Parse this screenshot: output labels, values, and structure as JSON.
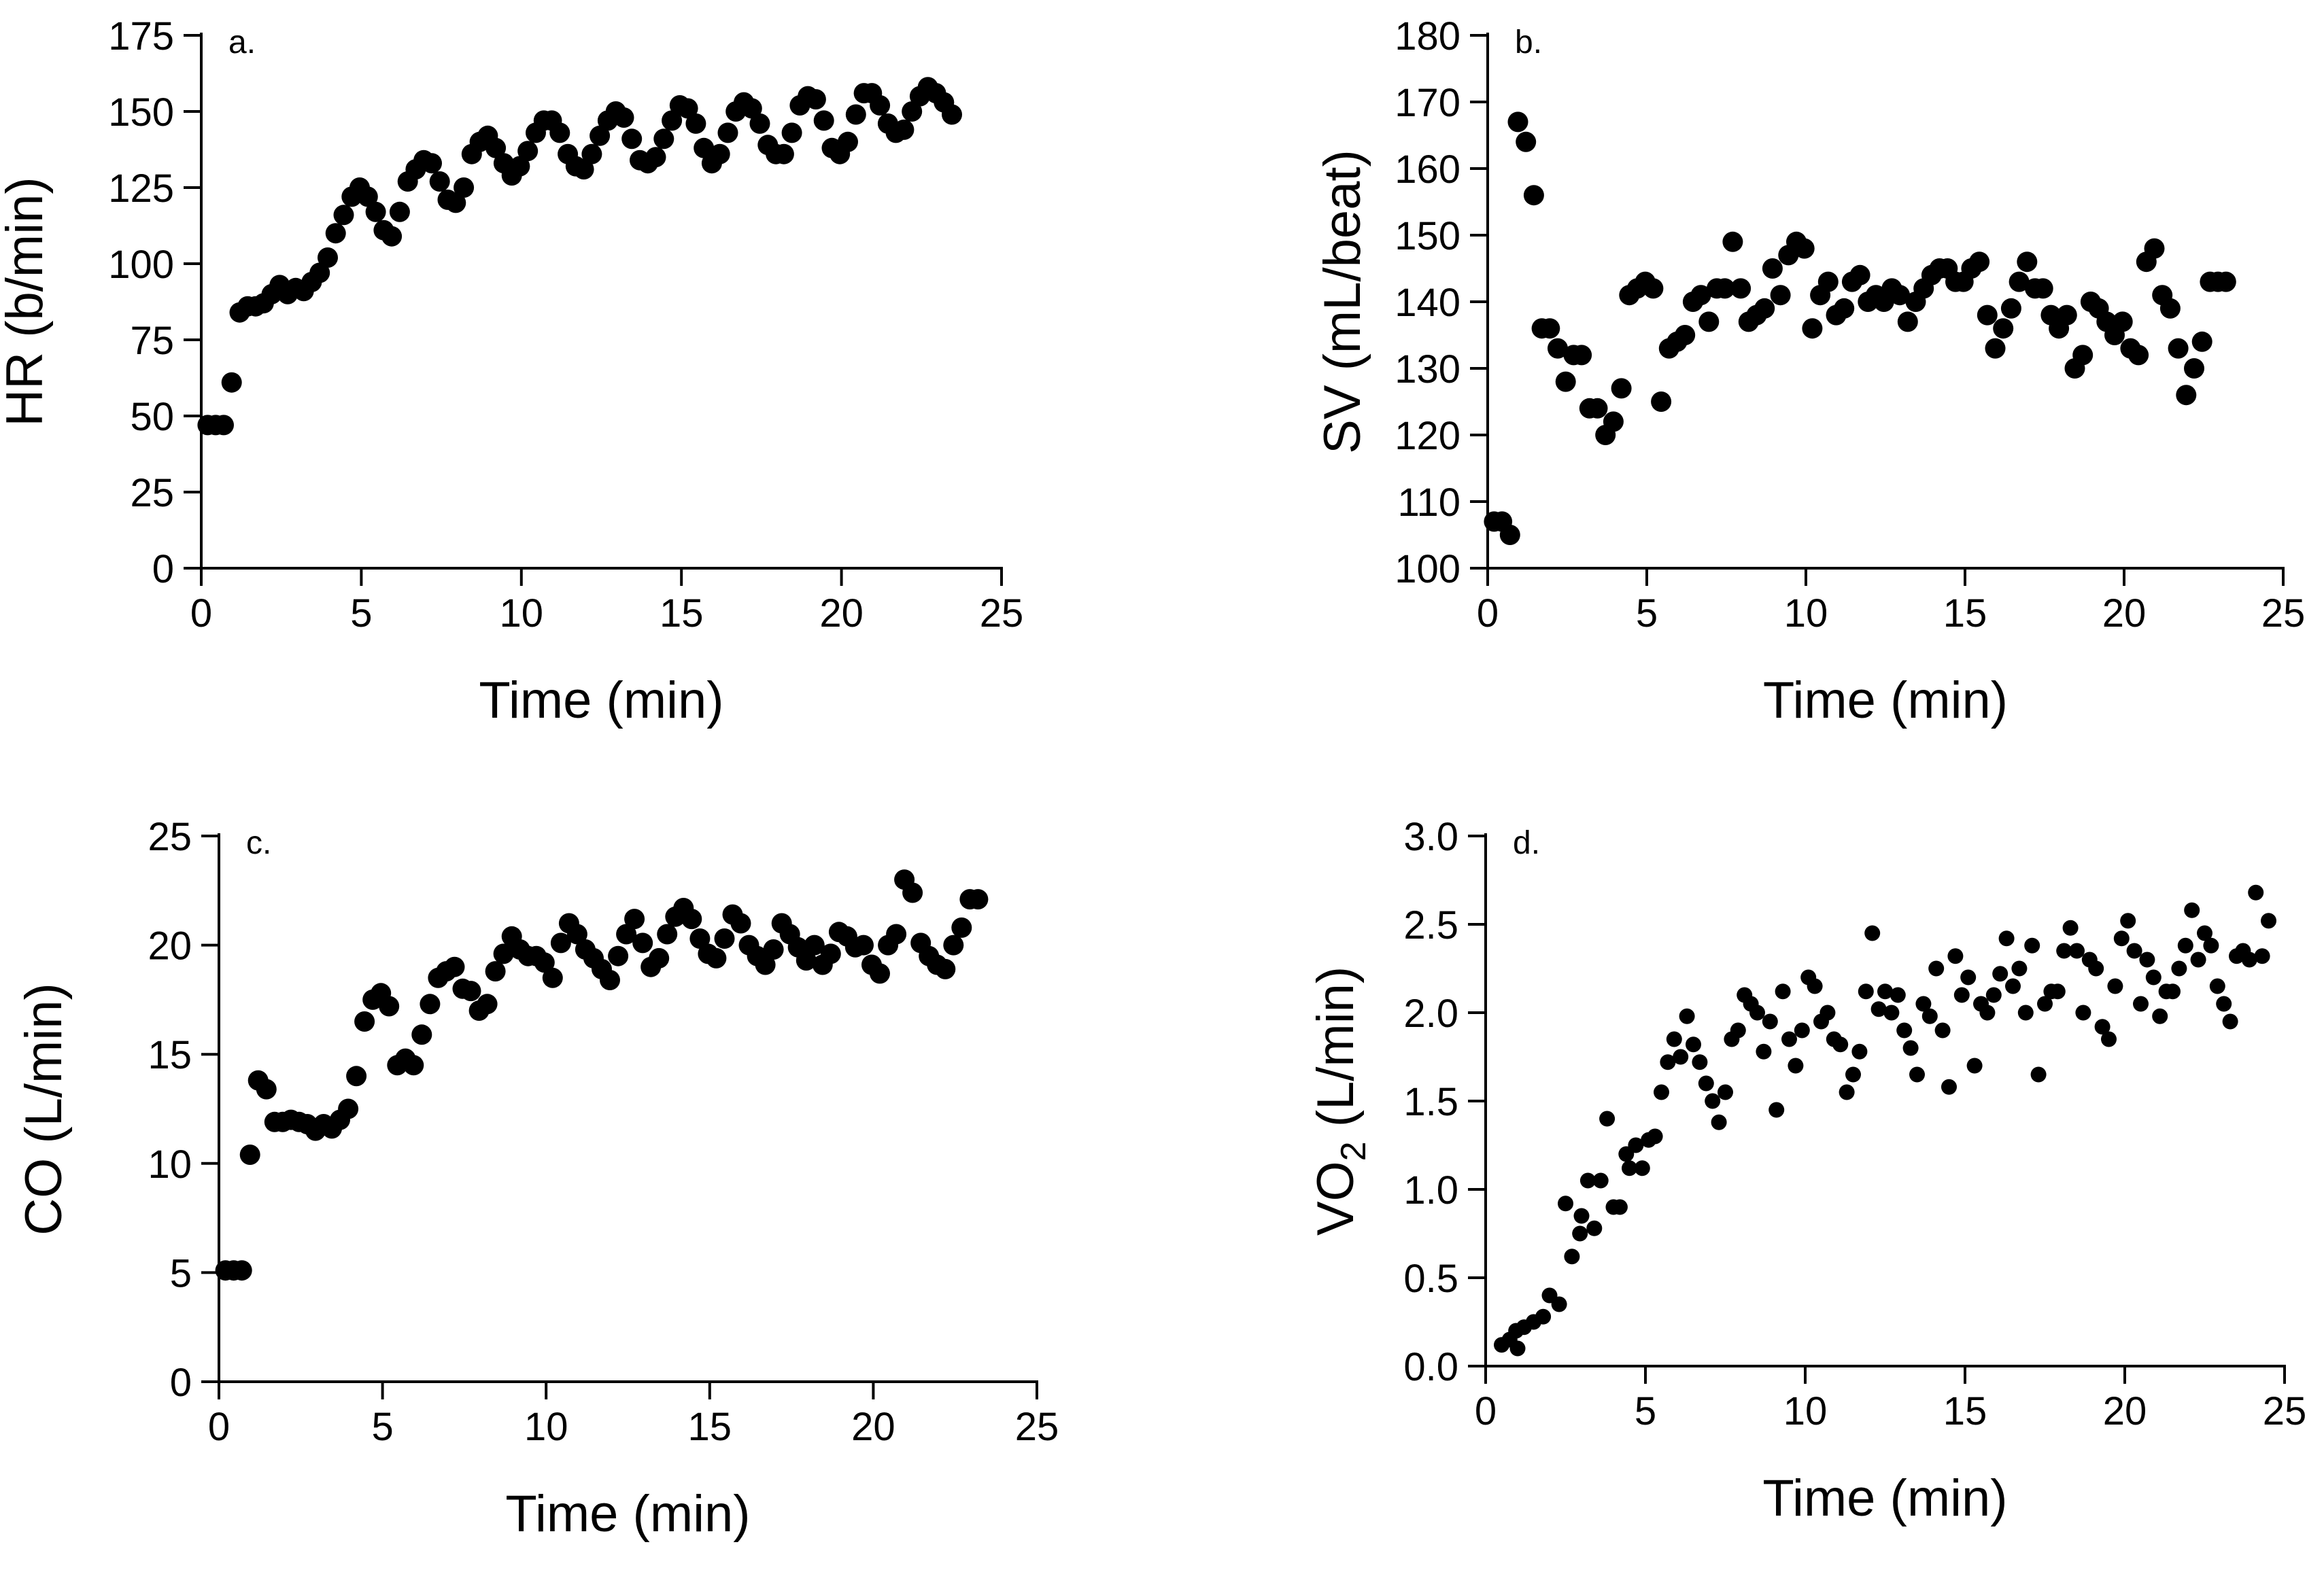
{
  "chart_data": [
    {
      "panel": "a.",
      "type": "scatter",
      "xlabel": "Time (min)",
      "ylabel": "HR (b/min)",
      "xlim": [
        0,
        25
      ],
      "ylim": [
        0,
        175
      ],
      "xticks": [
        "0",
        "5",
        "10",
        "15",
        "20",
        "25"
      ],
      "yticks": [
        "0",
        "25",
        "50",
        "75",
        "100",
        "125",
        "150",
        "175"
      ],
      "x": [
        0.2,
        0.45,
        0.7,
        0.95,
        1.2,
        1.45,
        1.7,
        1.95,
        2.2,
        2.45,
        2.7,
        2.95,
        3.2,
        3.45,
        3.7,
        3.95,
        4.2,
        4.45,
        4.7,
        4.95,
        5.2,
        5.45,
        5.7,
        5.95,
        6.2,
        6.45,
        6.7,
        6.95,
        7.2,
        7.45,
        7.7,
        7.95,
        8.2,
        8.45,
        8.7,
        8.95,
        9.2,
        9.45,
        9.7,
        9.95,
        10.2,
        10.45,
        10.7,
        10.95,
        11.2,
        11.45,
        11.7,
        11.95,
        12.2,
        12.45,
        12.7,
        12.95,
        13.2,
        13.45,
        13.7,
        13.95,
        14.2,
        14.45,
        14.7,
        14.95,
        15.2,
        15.45,
        15.7,
        15.95,
        16.2,
        16.45,
        16.7,
        16.95,
        17.2,
        17.45,
        17.7,
        17.95,
        18.2,
        18.45,
        18.7,
        18.95,
        19.2,
        19.45,
        19.7,
        19.95,
        20.2,
        20.45,
        20.7,
        20.95,
        21.2,
        21.45,
        21.7,
        21.95,
        22.2,
        22.45,
        22.7,
        22.95,
        23.2,
        23.45
      ],
      "y": [
        47,
        47,
        47,
        61,
        84,
        86,
        86,
        87,
        90,
        93,
        90,
        92,
        91,
        94,
        97,
        102,
        110,
        116,
        122,
        125,
        122,
        117,
        111,
        109,
        117,
        127,
        131,
        134,
        133,
        127,
        121,
        120,
        125,
        136,
        140,
        142,
        138,
        133,
        129,
        132,
        137,
        143,
        147,
        147,
        143,
        136,
        132,
        131,
        136,
        142,
        147,
        150,
        148,
        141,
        134,
        133,
        135,
        141,
        147,
        152,
        151,
        146,
        138,
        133,
        136,
        143,
        150,
        153,
        151,
        146,
        139,
        136,
        136,
        143,
        152,
        155,
        154,
        147,
        138,
        136,
        140,
        149,
        156,
        156,
        152,
        146,
        143,
        144,
        150,
        155,
        158,
        156,
        153,
        149
      ]
    },
    {
      "panel": "b.",
      "type": "scatter",
      "xlabel": "Time (min)",
      "ylabel": "SV (mL/beat)",
      "xlim": [
        0,
        25
      ],
      "ylim": [
        100,
        180
      ],
      "xticks": [
        "0",
        "5",
        "10",
        "15",
        "20",
        "25"
      ],
      "yticks": [
        "100",
        "110",
        "120",
        "130",
        "140",
        "150",
        "160",
        "170",
        "180"
      ],
      "x": [
        0.2,
        0.45,
        0.7,
        0.95,
        1.2,
        1.45,
        1.7,
        1.95,
        2.2,
        2.45,
        2.7,
        2.95,
        3.2,
        3.45,
        3.7,
        3.95,
        4.2,
        4.45,
        4.7,
        4.95,
        5.2,
        5.45,
        5.7,
        5.95,
        6.2,
        6.45,
        6.7,
        6.95,
        7.2,
        7.45,
        7.7,
        7.95,
        8.2,
        8.45,
        8.7,
        8.95,
        9.2,
        9.45,
        9.7,
        9.95,
        10.2,
        10.45,
        10.7,
        10.95,
        11.2,
        11.45,
        11.7,
        11.95,
        12.2,
        12.45,
        12.7,
        12.95,
        13.2,
        13.45,
        13.7,
        13.95,
        14.2,
        14.45,
        14.7,
        14.95,
        15.2,
        15.45,
        15.7,
        15.95,
        16.2,
        16.45,
        16.7,
        16.95,
        17.2,
        17.45,
        17.7,
        17.95,
        18.2,
        18.45,
        18.7,
        18.95,
        19.2,
        19.45,
        19.7,
        19.95,
        20.2,
        20.45,
        20.7,
        20.95,
        21.2,
        21.45,
        21.7,
        21.95,
        22.2,
        22.45,
        22.7,
        22.95,
        23.2
      ],
      "y": [
        107,
        107,
        105,
        167,
        164,
        156,
        136,
        136,
        133,
        128,
        132,
        132,
        124,
        124,
        120,
        122,
        127,
        141,
        142,
        143,
        142,
        125,
        133,
        134,
        135,
        140,
        141,
        137,
        142,
        142,
        149,
        142,
        137,
        138,
        139,
        145,
        141,
        147,
        149,
        148,
        136,
        141,
        143,
        138,
        139,
        143,
        144,
        140,
        141,
        140,
        142,
        141,
        137,
        140,
        142,
        144,
        145,
        145,
        143,
        143,
        145,
        146,
        138,
        133,
        136,
        139,
        143,
        146,
        142,
        142,
        138,
        136,
        138,
        130,
        132,
        140,
        139,
        137,
        135,
        137,
        133,
        132,
        146,
        148,
        141,
        139,
        133,
        126,
        130,
        134,
        143,
        143,
        143
      ]
    },
    {
      "panel": "c.",
      "type": "scatter",
      "xlabel": "Time (min)",
      "ylabel": "CO (L/min)",
      "xlim": [
        0,
        25
      ],
      "ylim": [
        0,
        25
      ],
      "xticks": [
        "0",
        "5",
        "10",
        "15",
        "20",
        "25"
      ],
      "yticks": [
        "0",
        "5",
        "10",
        "15",
        "20",
        "25"
      ],
      "x": [
        0.2,
        0.45,
        0.7,
        0.95,
        1.2,
        1.45,
        1.7,
        1.95,
        2.2,
        2.45,
        2.7,
        2.95,
        3.2,
        3.45,
        3.7,
        3.95,
        4.2,
        4.45,
        4.7,
        4.95,
        5.2,
        5.45,
        5.7,
        5.95,
        6.2,
        6.45,
        6.7,
        6.95,
        7.2,
        7.45,
        7.7,
        7.95,
        8.2,
        8.45,
        8.7,
        8.95,
        9.2,
        9.45,
        9.7,
        9.95,
        10.2,
        10.45,
        10.7,
        10.95,
        11.2,
        11.45,
        11.7,
        11.95,
        12.2,
        12.45,
        12.7,
        12.95,
        13.2,
        13.45,
        13.7,
        13.95,
        14.2,
        14.45,
        14.7,
        14.95,
        15.2,
        15.45,
        15.7,
        15.95,
        16.2,
        16.45,
        16.7,
        16.95,
        17.2,
        17.45,
        17.7,
        17.95,
        18.2,
        18.45,
        18.7,
        18.95,
        19.2,
        19.45,
        19.7,
        19.95,
        20.2,
        20.45,
        20.7,
        20.95,
        21.2,
        21.45,
        21.7,
        21.95,
        22.2,
        22.45,
        22.7,
        22.95,
        23.2
      ],
      "y": [
        5.1,
        5.1,
        5.1,
        10.4,
        13.8,
        13.4,
        11.9,
        11.9,
        12.0,
        11.9,
        11.8,
        11.5,
        11.8,
        11.6,
        12.0,
        12.5,
        14.0,
        16.5,
        17.5,
        17.8,
        17.2,
        14.5,
        14.8,
        14.5,
        15.9,
        17.3,
        18.5,
        18.8,
        19.0,
        18.0,
        17.9,
        17.0,
        17.3,
        18.8,
        19.6,
        20.4,
        19.8,
        19.5,
        19.5,
        19.2,
        18.5,
        20.1,
        21.0,
        20.5,
        19.8,
        19.4,
        18.9,
        18.4,
        19.5,
        20.5,
        21.2,
        20.1,
        19.0,
        19.4,
        20.5,
        21.3,
        21.7,
        21.2,
        20.3,
        19.6,
        19.4,
        20.3,
        21.4,
        21.0,
        20.0,
        19.5,
        19.1,
        19.8,
        21.0,
        20.5,
        19.9,
        19.3,
        20.0,
        19.1,
        19.6,
        20.6,
        20.4,
        19.9,
        20.0,
        19.1,
        18.7,
        20.0,
        20.5,
        23.0,
        22.4,
        20.1,
        19.5,
        19.1,
        18.9,
        20.0,
        20.8,
        22.1,
        22.1
      ]
    },
    {
      "panel": "d.",
      "type": "scatter",
      "xlabel": "Time (min)",
      "ylabel": "VO",
      "ylabel_subscript": "2",
      "ylabel_suffix": " (L/min)",
      "xlim": [
        0,
        25
      ],
      "ylim": [
        0.0,
        3.0
      ],
      "xticks": [
        "0",
        "5",
        "10",
        "15",
        "20",
        "25"
      ],
      "yticks": [
        "0.0",
        "0.5",
        "1.0",
        "1.5",
        "2.0",
        "2.5",
        "3.0"
      ],
      "x": [
        0.5,
        0.75,
        0.95,
        1.0,
        1.2,
        1.5,
        1.8,
        2.0,
        2.3,
        2.5,
        2.7,
        2.95,
        3.0,
        3.2,
        3.4,
        3.6,
        3.8,
        4.0,
        4.2,
        4.4,
        4.5,
        4.7,
        4.9,
        5.1,
        5.3,
        5.5,
        5.7,
        5.9,
        6.1,
        6.3,
        6.5,
        6.7,
        6.9,
        7.1,
        7.3,
        7.5,
        7.7,
        7.9,
        8.1,
        8.3,
        8.5,
        8.7,
        8.9,
        9.1,
        9.3,
        9.5,
        9.7,
        9.9,
        10.1,
        10.3,
        10.5,
        10.7,
        10.9,
        11.1,
        11.3,
        11.5,
        11.7,
        11.9,
        12.1,
        12.3,
        12.5,
        12.7,
        12.9,
        13.1,
        13.3,
        13.5,
        13.7,
        13.9,
        14.1,
        14.3,
        14.5,
        14.7,
        14.9,
        15.1,
        15.3,
        15.5,
        15.7,
        15.9,
        16.1,
        16.3,
        16.5,
        16.7,
        16.9,
        17.1,
        17.3,
        17.5,
        17.7,
        17.9,
        18.1,
        18.3,
        18.5,
        18.7,
        18.9,
        19.1,
        19.3,
        19.5,
        19.7,
        19.9,
        20.1,
        20.3,
        20.5,
        20.7,
        20.9,
        21.1,
        21.3,
        21.5,
        21.7,
        21.9,
        22.1,
        22.3,
        22.5,
        22.7,
        22.9,
        23.1,
        23.3,
        23.5,
        23.7,
        23.9,
        24.1,
        24.3,
        24.5
      ],
      "y": [
        0.12,
        0.15,
        0.2,
        0.1,
        0.22,
        0.25,
        0.28,
        0.4,
        0.35,
        0.92,
        0.62,
        0.75,
        0.85,
        1.05,
        0.78,
        1.05,
        1.4,
        0.9,
        0.9,
        1.2,
        1.12,
        1.25,
        1.12,
        1.28,
        1.3,
        1.55,
        1.72,
        1.85,
        1.75,
        1.98,
        1.82,
        1.72,
        1.6,
        1.5,
        1.38,
        1.55,
        1.85,
        1.9,
        2.1,
        2.05,
        2.0,
        1.78,
        1.95,
        1.45,
        2.12,
        1.85,
        1.7,
        1.9,
        2.2,
        2.15,
        1.95,
        2.0,
        1.85,
        1.82,
        1.55,
        1.65,
        1.78,
        2.12,
        2.45,
        2.02,
        2.12,
        2.0,
        2.1,
        1.9,
        1.8,
        1.65,
        2.05,
        1.98,
        2.25,
        1.9,
        1.58,
        2.32,
        2.1,
        2.2,
        1.7,
        2.05,
        2.0,
        2.1,
        2.22,
        2.42,
        2.15,
        2.25,
        2.0,
        2.38,
        1.65,
        2.05,
        2.12,
        2.12,
        2.35,
        2.48,
        2.35,
        2.0,
        2.3,
        2.25,
        1.92,
        1.85,
        2.15,
        2.42,
        2.52,
        2.35,
        2.05,
        2.3,
        2.2,
        1.98,
        2.12,
        2.12,
        2.25,
        2.38,
        2.58,
        2.3,
        2.45,
        2.38,
        2.15,
        2.05,
        1.95,
        2.32,
        2.35,
        2.3,
        2.68,
        2.32,
        2.52
      ]
    }
  ]
}
